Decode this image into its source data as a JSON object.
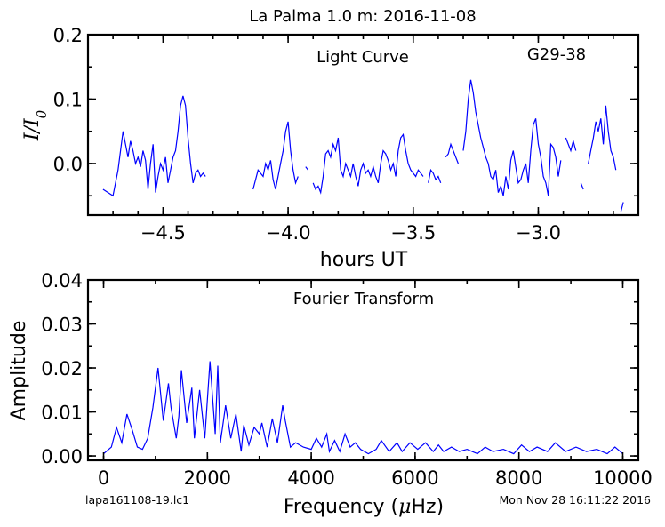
{
  "figure": {
    "suptitle": "La Palma 1.0 m:  2016-11-08",
    "footer_left": "lapa161108-19.lc1",
    "footer_right": "Mon Nov 28 16:11:22 2016"
  },
  "chart_data": [
    {
      "type": "line",
      "panel_title": "Light Curve",
      "annotation": "G29-38",
      "xlabel": "hours UT",
      "ylabel": "I/I0",
      "xlim": [
        -4.8,
        -2.6
      ],
      "ylim": [
        -0.08,
        0.2
      ],
      "xticks": [
        -4.5,
        -4.0,
        -3.5,
        -3.0
      ],
      "xtick_labels": [
        "−4.5",
        "−4.0",
        "−3.5",
        "−3.0"
      ],
      "yticks": [
        0.0,
        0.1,
        0.2
      ],
      "ytick_labels": [
        "0.0",
        "0.1",
        "0.2"
      ],
      "series": [
        {
          "color": "#0000ff",
          "segments": [
            {
              "x": [
                -4.74,
                -4.72,
                -4.7,
                -4.68,
                -4.67,
                -4.66,
                -4.65,
                -4.64,
                -4.63,
                -4.62,
                -4.61,
                -4.6,
                -4.59,
                -4.58,
                -4.57,
                -4.56,
                -4.55,
                -4.54,
                -4.53,
                -4.52,
                -4.51,
                -4.5,
                -4.49,
                -4.48,
                -4.47,
                -4.46,
                -4.45,
                -4.44,
                -4.43,
                -4.42,
                -4.41,
                -4.4,
                -4.39,
                -4.38,
                -4.37,
                -4.36,
                -4.35,
                -4.34,
                -4.33
              ],
              "y": [
                -0.04,
                -0.045,
                -0.05,
                -0.01,
                0.02,
                0.05,
                0.03,
                0.01,
                0.035,
                0.02,
                0.0,
                0.01,
                -0.005,
                0.02,
                0.005,
                -0.04,
                0.0,
                0.03,
                -0.045,
                -0.02,
                0.0,
                -0.01,
                0.01,
                -0.03,
                -0.01,
                0.01,
                0.02,
                0.05,
                0.09,
                0.105,
                0.09,
                0.04,
                0.0,
                -0.03,
                -0.015,
                -0.01,
                -0.02,
                -0.015,
                -0.02
              ]
            },
            {
              "x": [
                -4.14,
                -4.12,
                -4.1,
                -4.09,
                -4.08,
                -4.07,
                -4.06,
                -4.05,
                -4.04,
                -4.03,
                -4.02,
                -4.01,
                -4.0,
                -3.99,
                -3.98,
                -3.97,
                -3.96
              ],
              "y": [
                -0.04,
                -0.01,
                -0.02,
                0.0,
                -0.01,
                0.005,
                -0.025,
                -0.04,
                -0.02,
                0.0,
                0.02,
                0.05,
                0.065,
                0.02,
                -0.01,
                -0.03,
                -0.02
              ]
            },
            {
              "x": [
                -3.93,
                -3.92
              ],
              "y": [
                -0.005,
                -0.01
              ]
            },
            {
              "x": [
                -3.9,
                -3.89,
                -3.88,
                -3.87,
                -3.86,
                -3.85,
                -3.84,
                -3.83,
                -3.82,
                -3.81,
                -3.8,
                -3.79,
                -3.78,
                -3.77,
                -3.76,
                -3.75,
                -3.74,
                -3.73,
                -3.72,
                -3.71,
                -3.7,
                -3.69,
                -3.68,
                -3.67,
                -3.66,
                -3.65,
                -3.64,
                -3.63,
                -3.62,
                -3.61,
                -3.6,
                -3.59,
                -3.58,
                -3.57,
                -3.56,
                -3.55,
                -3.54,
                -3.53,
                -3.52,
                -3.51,
                -3.5,
                -3.49,
                -3.48,
                -3.47,
                -3.46
              ],
              "y": [
                -0.03,
                -0.04,
                -0.035,
                -0.045,
                -0.02,
                0.015,
                0.02,
                0.01,
                0.03,
                0.02,
                0.04,
                -0.01,
                -0.02,
                0.0,
                -0.01,
                -0.02,
                0.0,
                -0.02,
                -0.035,
                -0.01,
                0.0,
                -0.015,
                -0.01,
                -0.02,
                -0.005,
                -0.02,
                -0.03,
                0.0,
                0.02,
                0.015,
                0.005,
                -0.01,
                0.0,
                -0.02,
                0.02,
                0.04,
                0.045,
                0.02,
                0.0,
                -0.01,
                -0.015,
                -0.02,
                -0.01,
                -0.015,
                -0.02
              ]
            },
            {
              "x": [
                -3.44,
                -3.43,
                -3.42,
                -3.41,
                -3.4,
                -3.39
              ],
              "y": [
                -0.03,
                -0.01,
                -0.015,
                -0.025,
                -0.02,
                -0.03
              ]
            },
            {
              "x": [
                -3.37,
                -3.36,
                -3.35,
                -3.34,
                -3.33,
                -3.32
              ],
              "y": [
                0.01,
                0.015,
                0.03,
                0.02,
                0.01,
                0.0
              ]
            },
            {
              "x": [
                -3.3,
                -3.29,
                -3.28,
                -3.27,
                -3.26,
                -3.25,
                -3.24,
                -3.23,
                -3.22,
                -3.21,
                -3.2,
                -3.19,
                -3.18,
                -3.17,
                -3.16,
                -3.15,
                -3.14,
                -3.13,
                -3.12,
                -3.11,
                -3.1,
                -3.09,
                -3.08,
                -3.07,
                -3.06,
                -3.05,
                -3.04,
                -3.03,
                -3.02,
                -3.01,
                -3.0,
                -2.99,
                -2.98,
                -2.97,
                -2.96,
                -2.95,
                -2.94,
                -2.93,
                -2.92,
                -2.91
              ],
              "y": [
                0.02,
                0.05,
                0.1,
                0.13,
                0.11,
                0.08,
                0.06,
                0.04,
                0.025,
                0.01,
                0.0,
                -0.02,
                -0.025,
                -0.01,
                -0.045,
                -0.035,
                -0.05,
                -0.02,
                -0.04,
                0.005,
                0.02,
                -0.005,
                -0.03,
                -0.025,
                -0.01,
                0.0,
                -0.03,
                0.02,
                0.06,
                0.07,
                0.03,
                0.01,
                -0.02,
                -0.03,
                -0.05,
                0.03,
                0.025,
                0.01,
                -0.02,
                0.005
              ]
            },
            {
              "x": [
                -2.89,
                -2.88,
                -2.87,
                -2.86,
                -2.85
              ],
              "y": [
                0.04,
                0.03,
                0.02,
                0.035,
                0.02
              ]
            },
            {
              "x": [
                -2.83,
                -2.82
              ],
              "y": [
                -0.03,
                -0.04
              ]
            },
            {
              "x": [
                -2.8,
                -2.79,
                -2.78,
                -2.77,
                -2.76,
                -2.75,
                -2.74,
                -2.73,
                -2.72,
                -2.71,
                -2.7,
                -2.69
              ],
              "y": [
                0.0,
                0.02,
                0.04,
                0.065,
                0.05,
                0.07,
                0.03,
                0.09,
                0.05,
                0.02,
                0.01,
                -0.01
              ]
            },
            {
              "x": [
                -2.67,
                -2.66
              ],
              "y": [
                -0.075,
                -0.06
              ]
            }
          ]
        }
      ]
    },
    {
      "type": "line",
      "panel_title": "Fourier Transform",
      "xlabel": "Frequency (μHz)",
      "ylabel": "Amplitude",
      "xlim": [
        -300,
        10300
      ],
      "ylim": [
        -0.001,
        0.04
      ],
      "xticks": [
        0,
        2000,
        4000,
        6000,
        8000,
        10000
      ],
      "xtick_labels": [
        "0",
        "2000",
        "4000",
        "6000",
        "8000",
        "10000"
      ],
      "yticks": [
        0.0,
        0.01,
        0.02,
        0.03,
        0.04
      ],
      "ytick_labels": [
        "0.00",
        "0.01",
        "0.02",
        "0.03",
        "0.04"
      ],
      "series": [
        {
          "color": "#0000ff",
          "x": [
            0,
            150,
            250,
            350,
            450,
            550,
            650,
            750,
            850,
            950,
            1050,
            1150,
            1250,
            1300,
            1400,
            1450,
            1500,
            1600,
            1700,
            1750,
            1850,
            1950,
            2050,
            2150,
            2200,
            2250,
            2350,
            2450,
            2550,
            2650,
            2700,
            2800,
            2900,
            3000,
            3050,
            3150,
            3250,
            3350,
            3450,
            3500,
            3600,
            3700,
            3850,
            4000,
            4100,
            4200,
            4300,
            4350,
            4450,
            4550,
            4650,
            4750,
            4850,
            4950,
            5100,
            5250,
            5350,
            5500,
            5650,
            5750,
            5900,
            6050,
            6200,
            6350,
            6450,
            6550,
            6700,
            6850,
            7000,
            7200,
            7350,
            7500,
            7700,
            7900,
            8050,
            8200,
            8350,
            8550,
            8700,
            8900,
            9100,
            9300,
            9500,
            9700,
            9850,
            9950,
            10000
          ],
          "y": [
            0.0005,
            0.002,
            0.0065,
            0.003,
            0.0095,
            0.006,
            0.002,
            0.0015,
            0.004,
            0.011,
            0.02,
            0.008,
            0.0165,
            0.011,
            0.004,
            0.009,
            0.0195,
            0.0075,
            0.0155,
            0.004,
            0.015,
            0.004,
            0.0215,
            0.005,
            0.0205,
            0.003,
            0.0115,
            0.004,
            0.0095,
            0.001,
            0.007,
            0.0025,
            0.0065,
            0.005,
            0.0075,
            0.002,
            0.0085,
            0.003,
            0.0115,
            0.008,
            0.002,
            0.003,
            0.002,
            0.0015,
            0.004,
            0.002,
            0.005,
            0.001,
            0.0035,
            0.001,
            0.005,
            0.002,
            0.003,
            0.0015,
            0.0005,
            0.0015,
            0.0035,
            0.001,
            0.003,
            0.001,
            0.003,
            0.0015,
            0.003,
            0.001,
            0.0025,
            0.001,
            0.002,
            0.001,
            0.0015,
            0.0005,
            0.002,
            0.001,
            0.0015,
            0.0005,
            0.0025,
            0.001,
            0.002,
            0.001,
            0.003,
            0.001,
            0.002,
            0.001,
            0.0015,
            0.0005,
            0.002,
            0.001,
            0.0005
          ]
        }
      ]
    }
  ]
}
